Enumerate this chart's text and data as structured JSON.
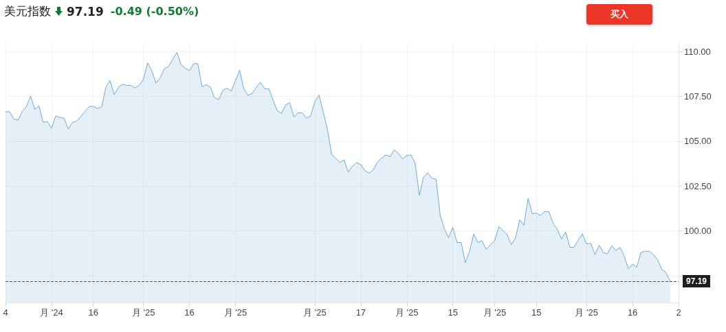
{
  "chart_data": {
    "type": "area",
    "title": "美元指数",
    "annotations": [
      "97.19",
      "-0.49 (-0.50%)",
      "买入"
    ],
    "categories": [
      "4",
      null,
      null,
      null,
      null,
      null,
      null,
      null,
      null,
      null,
      null,
      "月 '24",
      null,
      null,
      null,
      null,
      null,
      null,
      null,
      null,
      null,
      "16",
      null,
      null,
      null,
      null,
      null,
      null,
      null,
      null,
      null,
      null,
      null,
      "月 '25",
      null,
      null,
      null,
      null,
      null,
      null,
      null,
      null,
      null,
      null,
      "16",
      null,
      null,
      null,
      null,
      null,
      null,
      null,
      null,
      null,
      null,
      "月 '25",
      null,
      null,
      null,
      null,
      null,
      null,
      null,
      null,
      null,
      null,
      null,
      null,
      null,
      null,
      null,
      null,
      null,
      null,
      "月 '25",
      null,
      null,
      null,
      null,
      null,
      null,
      null,
      null,
      null,
      null,
      "17",
      null,
      null,
      null,
      null,
      null,
      null,
      null,
      null,
      null,
      null,
      "月 '25",
      null,
      null,
      null,
      null,
      null,
      null,
      null,
      null,
      null,
      null,
      "15",
      null,
      null,
      null,
      null,
      null,
      null,
      null,
      null,
      null,
      "月 '25",
      null,
      null,
      null,
      null,
      null,
      null,
      null,
      null,
      null,
      "15",
      null,
      null,
      null,
      null,
      null,
      null,
      null,
      null,
      null,
      null,
      null,
      "月 '25",
      null,
      null,
      null,
      null,
      null,
      null,
      null,
      null,
      null,
      null,
      "16",
      null,
      null,
      null,
      null,
      null,
      null,
      null,
      null,
      null,
      null,
      "2"
    ],
    "series": [
      {
        "color": "#6fa8d6",
        "values": [
          106.64,
          106.64,
          106.23,
          106.17,
          106.65,
          106.93,
          107.51,
          106.78,
          106.97,
          106.05,
          106.1,
          105.71,
          106.41,
          106.32,
          106.28,
          105.68,
          106.04,
          106.12,
          106.36,
          106.65,
          106.92,
          106.95,
          106.82,
          106.92,
          108.0,
          108.38,
          107.59,
          108.0,
          108.17,
          108.11,
          108.11,
          107.97,
          108.11,
          108.46,
          109.36,
          108.92,
          108.24,
          108.53,
          109.04,
          109.16,
          109.58,
          109.94,
          109.26,
          109.07,
          108.94,
          109.32,
          109.32,
          108.03,
          108.15,
          108.01,
          107.42,
          107.32,
          107.83,
          107.96,
          107.79,
          108.38,
          108.95,
          107.93,
          107.56,
          107.66,
          108.0,
          108.28,
          107.93,
          107.92,
          107.28,
          106.7,
          106.55,
          107.02,
          107.14,
          106.36,
          106.58,
          106.58,
          106.28,
          106.4,
          107.21,
          107.57,
          106.63,
          105.67,
          104.27,
          104.03,
          103.82,
          103.94,
          103.27,
          103.6,
          103.8,
          103.69,
          103.35,
          103.21,
          103.42,
          103.83,
          104.06,
          104.23,
          104.14,
          104.51,
          104.31,
          104.01,
          104.2,
          104.23,
          103.76,
          101.98,
          102.98,
          103.23,
          102.93,
          102.87,
          100.85,
          100.09,
          99.61,
          100.2,
          99.35,
          99.35,
          98.22,
          98.86,
          99.82,
          99.35,
          99.44,
          98.97,
          99.22,
          99.44,
          100.23,
          100.01,
          99.79,
          99.22,
          99.59,
          100.61,
          100.31,
          101.8,
          100.95,
          100.99,
          100.85,
          101.07,
          101.07,
          100.41,
          100.08,
          99.54,
          99.93,
          99.08,
          99.08,
          99.48,
          99.83,
          99.26,
          99.31,
          98.67,
          99.2,
          98.78,
          98.72,
          99.16,
          98.9,
          99.07,
          98.59,
          97.88,
          98.14,
          97.97,
          98.79,
          98.86,
          98.86,
          98.67,
          98.38,
          97.84,
          97.66,
          97.19,
          null,
          null
        ]
      }
    ],
    "ylim": [
      96,
      110.5
    ],
    "yticks": [
      {
        "value": 97.5,
        "label": null
      },
      {
        "value": 100,
        "label": "100.00"
      },
      {
        "value": 102.5,
        "label": "102.50"
      },
      {
        "value": 105,
        "label": "105.00"
      },
      {
        "value": 107.5,
        "label": "107.50"
      },
      {
        "value": 110,
        "label": "110.00"
      }
    ],
    "ref_lines": [
      {
        "axis": "y",
        "value": 97.19,
        "label": "97.19",
        "color": "#555555",
        "line_style": "dashed"
      }
    ],
    "grid": true,
    "marker": "none",
    "line_style": "solid"
  }
}
